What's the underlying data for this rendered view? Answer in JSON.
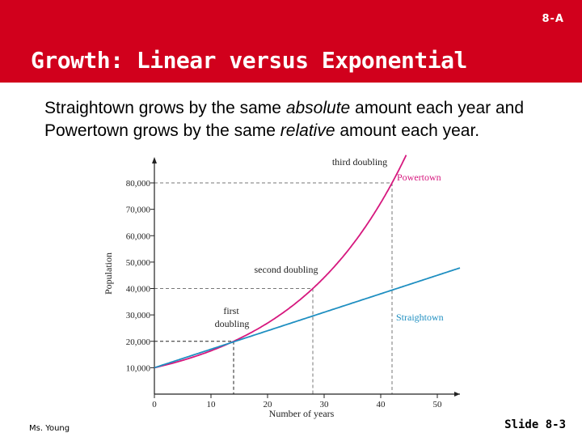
{
  "header": {
    "section_tag": "8-A",
    "title": "Growth: Linear versus Exponential",
    "color": "#d1001c"
  },
  "body": {
    "part1": "Straightown grows by the same ",
    "em1": "absolute",
    "part2": " amount each year and Powertown grows by the same ",
    "em2": "relative",
    "part3": " amount each year."
  },
  "chart_data": {
    "type": "line",
    "xlabel": "Number of years",
    "ylabel": "Population",
    "xlim": [
      0,
      54
    ],
    "ylim": [
      0,
      85000
    ],
    "x_ticks": [
      0,
      10,
      20,
      30,
      40,
      50
    ],
    "y_ticks": [
      10000,
      20000,
      30000,
      40000,
      50000,
      60000,
      70000,
      80000
    ],
    "y_tick_labels": [
      "10,000",
      "20,000",
      "30,000",
      "40,000",
      "50,000",
      "60,000",
      "70,000",
      "80,000"
    ],
    "series": [
      {
        "name": "Powertown",
        "color": "#d6187e",
        "formula": "exponential",
        "start": 10000,
        "doubling_years": 14,
        "x_end": 44.5
      },
      {
        "name": "Straightown",
        "color": "#1f8fc1",
        "formula": "linear",
        "start": 10000,
        "slope": 700,
        "x_end": 54
      }
    ],
    "annotations": [
      {
        "text_lines": [
          "first",
          "doubling"
        ],
        "x": 14,
        "y": 20000
      },
      {
        "text_lines": [
          "second doubling"
        ],
        "x": 28,
        "y": 40000
      },
      {
        "text_lines": [
          "third doubling"
        ],
        "x": 42,
        "y": 80000
      }
    ],
    "axis_color": "#222222",
    "guide_color": "#777777"
  },
  "footer": {
    "author": "Ms. Young",
    "slide_number": "Slide 8-3"
  }
}
